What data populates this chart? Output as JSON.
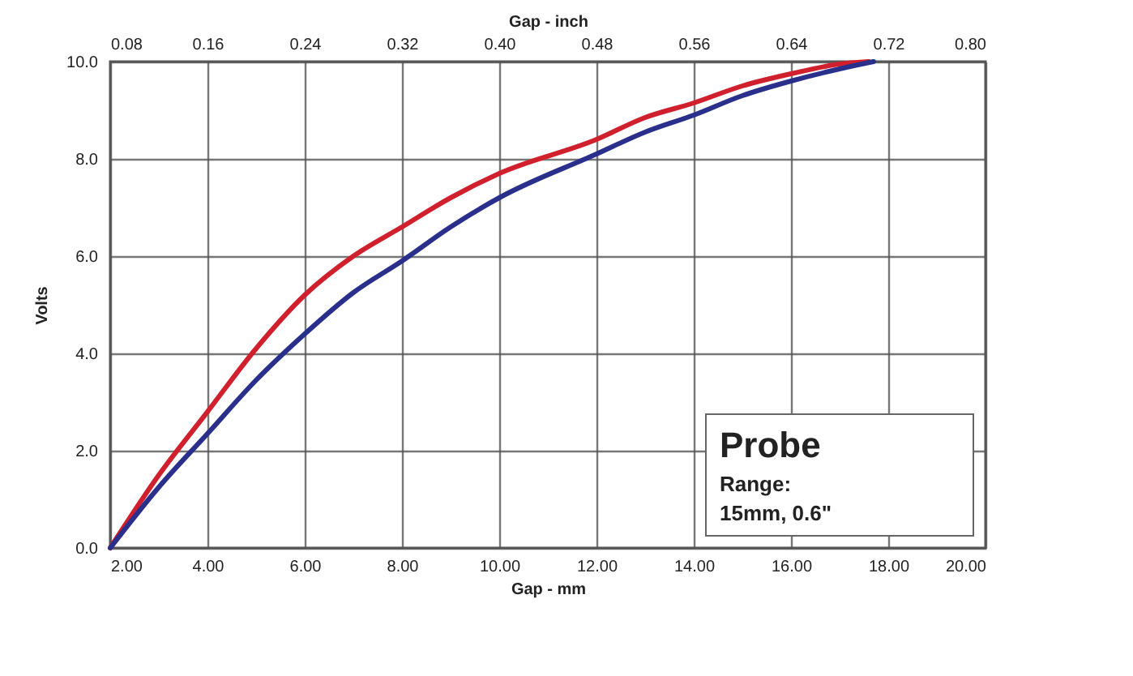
{
  "chart_data": {
    "type": "line",
    "xlabel": "Gap - mm",
    "ylabel": "Volts",
    "x2label": "Gap - inch",
    "xlim": [
      2,
      20
    ],
    "xticks": [
      {
        "value": 2,
        "label": "2.00"
      },
      {
        "value": 4,
        "label": "4.00"
      },
      {
        "value": 6,
        "label": "6.00"
      },
      {
        "value": 8,
        "label": "8.00"
      },
      {
        "value": 10,
        "label": "10.00"
      },
      {
        "value": 12,
        "label": "12.00"
      },
      {
        "value": 14,
        "label": "14.00"
      },
      {
        "value": 16,
        "label": "16.00"
      },
      {
        "value": 18,
        "label": "18.00"
      },
      {
        "value": 20,
        "label": "20.00"
      }
    ],
    "x2lim": [
      0.08,
      0.8
    ],
    "x2ticks": [
      0.08,
      0.16,
      0.24,
      0.32,
      {
        "value": 0.4,
        "label": "0.40"
      },
      0.48,
      0.56,
      0.64,
      0.72,
      {
        "value": 0.8,
        "label": "0.80"
      }
    ],
    "ylim": [
      0,
      10
    ],
    "yticks": [
      {
        "value": 0,
        "label": "0.0"
      },
      {
        "value": 2,
        "label": "2.0"
      },
      {
        "value": 4,
        "label": "4.0"
      },
      {
        "value": 6,
        "label": "6.0"
      },
      {
        "value": 8,
        "label": "8.0"
      },
      {
        "value": 10,
        "label": "10.0"
      }
    ],
    "grid": true,
    "marker": "none",
    "line_style": "solid",
    "series": [
      {
        "color": "#d0202e",
        "x": [
          2,
          3,
          4,
          5,
          6,
          7,
          8,
          9,
          10,
          12,
          13,
          14,
          15,
          16,
          17,
          17.6
        ],
        "values": [
          0,
          1.5,
          2.8,
          4.1,
          5.2,
          6.0,
          6.6,
          7.2,
          7.7,
          8.4,
          8.85,
          9.15,
          9.5,
          9.75,
          9.95,
          10.0
        ]
      },
      {
        "color": "#2a2f8c",
        "x": [
          2,
          3,
          4,
          5,
          6,
          7,
          8,
          9,
          10,
          12,
          13,
          14,
          15,
          16,
          17,
          17.7
        ],
        "values": [
          0,
          1.25,
          2.35,
          3.45,
          4.4,
          5.25,
          5.9,
          6.6,
          7.2,
          8.1,
          8.55,
          8.9,
          9.3,
          9.6,
          9.85,
          10.0
        ]
      }
    ],
    "annotations": [
      "Probe",
      "Range:",
      "15mm, 0.6\""
    ]
  }
}
